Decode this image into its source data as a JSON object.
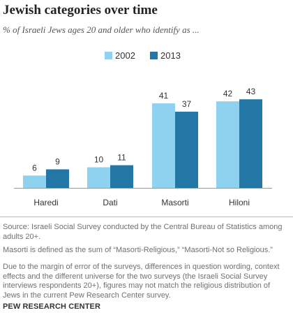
{
  "title": "Jewish categories over time",
  "subtitle": "% of Israeli Jews ages 20 and older who identify as ...",
  "colors": {
    "2002": "#8fd2f0",
    "2013": "#2277a6"
  },
  "chart_data": {
    "type": "bar",
    "title": "Jewish categories over time",
    "subtitle": "% of Israeli Jews ages 20 and older who identify as ...",
    "categories": [
      "Haredi",
      "Dati",
      "Masorti",
      "Hiloni"
    ],
    "series": [
      {
        "name": "2002",
        "values": [
          6,
          10,
          41,
          42
        ]
      },
      {
        "name": "2013",
        "values": [
          9,
          11,
          37,
          43
        ]
      }
    ],
    "xlabel": "",
    "ylabel": "",
    "ylim": [
      0,
      50
    ],
    "grid": false,
    "legend": "top-center",
    "data_labels": true
  },
  "notes": {
    "source": "Source: Israeli Social Survey conducted by the Central Bureau of Statistics among adults 20+.",
    "masorti": "Masorti is defined as the sum of “Masorti-Religious,” “Masorti-Not so Religious.”",
    "margin": "Due to the margin of error of the surveys, differences in question wording, context effects and the different universe for the two surveys (the Israeli Social Survey interviews respondents 20+), figures may not match the religious distribution of Jews in the current Pew Research Center survey."
  },
  "credit": "PEW RESEARCH CENTER"
}
